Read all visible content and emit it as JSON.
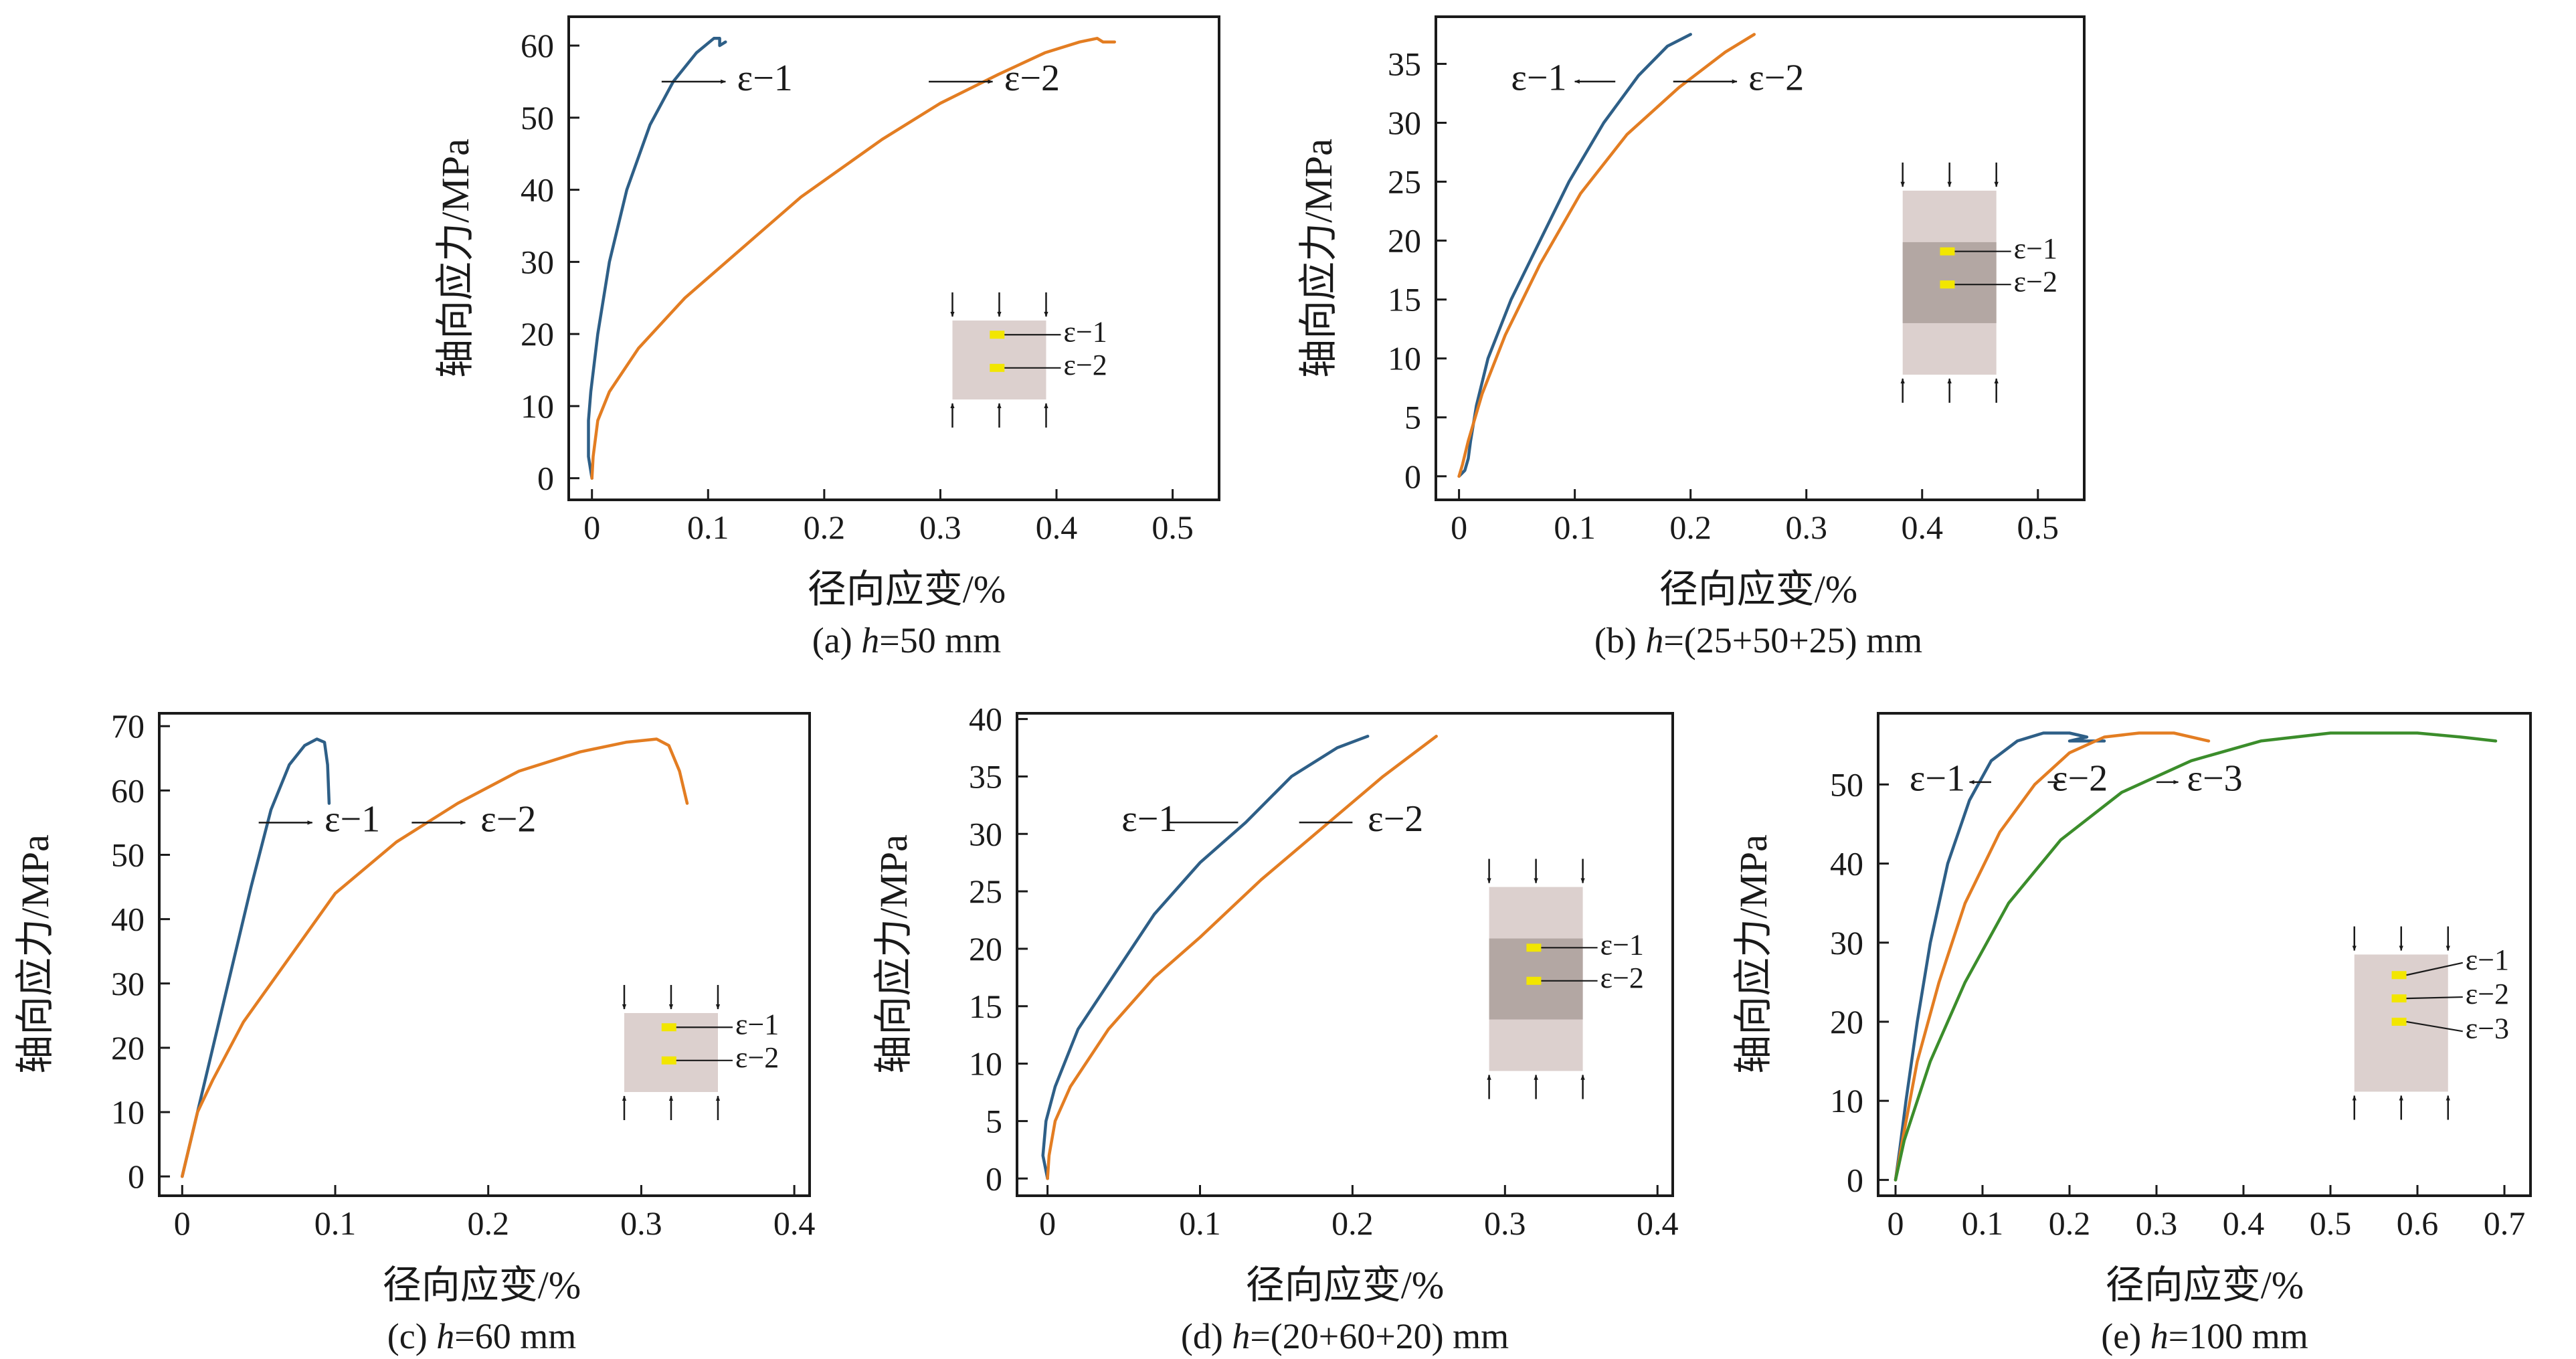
{
  "colors": {
    "series_1": "#2e5f87",
    "series_2": "#e37d22",
    "series_3": "#3b8d2b",
    "axis": "#1a1a1a",
    "specimen_light": "#dcd0ce",
    "specimen_dark": "#b3a7a3",
    "gauge": "#f2e600",
    "background": "#ffffff"
  },
  "chart_data": [
    {
      "id": "a",
      "type": "line",
      "caption": "(a) h=50 mm",
      "caption_parts": {
        "prefix": "(a) ",
        "var": "h",
        "suffix": "=50 mm"
      },
      "xlabel": "径向应变/%",
      "ylabel": "轴向应力/MPa",
      "xlim": [
        -0.02,
        0.54
      ],
      "ylim": [
        -3,
        64
      ],
      "xticks": [
        0,
        0.1,
        0.2,
        0.3,
        0.4,
        0.5
      ],
      "xtick_labels": [
        "0",
        "0.1",
        "0.2",
        "0.3",
        "0.4",
        "0.5"
      ],
      "yticks": [
        0,
        10,
        20,
        30,
        40,
        50,
        60
      ],
      "ytick_labels": [
        "0",
        "10",
        "20",
        "30",
        "40",
        "50",
        "60"
      ],
      "series": [
        {
          "name": "ε−1",
          "color_key": "series_1",
          "points": [
            [
              0,
              0
            ],
            [
              -0.003,
              3
            ],
            [
              -0.003,
              8
            ],
            [
              -0.001,
              12
            ],
            [
              0.005,
              20
            ],
            [
              0.015,
              30
            ],
            [
              0.03,
              40
            ],
            [
              0.05,
              49
            ],
            [
              0.07,
              55
            ],
            [
              0.09,
              59
            ],
            [
              0.105,
              61
            ],
            [
              0.11,
              61
            ],
            [
              0.11,
              60
            ],
            [
              0.115,
              60.5
            ]
          ]
        },
        {
          "name": "ε−2",
          "color_key": "series_2",
          "points": [
            [
              0,
              0
            ],
            [
              0.001,
              3
            ],
            [
              0.005,
              8
            ],
            [
              0.015,
              12
            ],
            [
              0.04,
              18
            ],
            [
              0.08,
              25
            ],
            [
              0.13,
              32
            ],
            [
              0.18,
              39
            ],
            [
              0.25,
              47
            ],
            [
              0.3,
              52
            ],
            [
              0.35,
              56
            ],
            [
              0.39,
              59
            ],
            [
              0.42,
              60.5
            ],
            [
              0.435,
              61
            ],
            [
              0.44,
              60.5
            ],
            [
              0.45,
              60.5
            ]
          ]
        }
      ],
      "annotations": [
        {
          "text": "ε−1",
          "from": [
            0.06,
            55
          ],
          "to": [
            0.115,
            55
          ],
          "text_at": [
            0.125,
            55
          ],
          "anchor": "start"
        },
        {
          "text": "ε−2",
          "from": [
            0.29,
            55
          ],
          "to": [
            0.345,
            55
          ],
          "text_at": [
            0.355,
            55
          ],
          "anchor": "start"
        }
      ],
      "inset": {
        "variant": "plain",
        "gauges": [
          "ε−1",
          "ε−2"
        ]
      }
    },
    {
      "id": "b",
      "type": "line",
      "caption": "(b) h=(25+50+25) mm",
      "caption_parts": {
        "prefix": "(b) ",
        "var": "h",
        "suffix": "=(25+50+25) mm"
      },
      "xlabel": "径向应变/%",
      "ylabel": "轴向应力/MPa",
      "xlim": [
        -0.02,
        0.54
      ],
      "ylim": [
        -2,
        39
      ],
      "xticks": [
        0,
        0.1,
        0.2,
        0.3,
        0.4,
        0.5
      ],
      "xtick_labels": [
        "0",
        "0.1",
        "0.2",
        "0.3",
        "0.4",
        "0.5"
      ],
      "yticks": [
        0,
        5,
        10,
        15,
        20,
        25,
        30,
        35
      ],
      "ytick_labels": [
        "0",
        "5",
        "10",
        "15",
        "20",
        "25",
        "30",
        "35"
      ],
      "series": [
        {
          "name": "ε−1",
          "color_key": "series_1",
          "points": [
            [
              0,
              0
            ],
            [
              0.005,
              0.5
            ],
            [
              0.008,
              1.5
            ],
            [
              0.01,
              3
            ],
            [
              0.015,
              6
            ],
            [
              0.025,
              10
            ],
            [
              0.045,
              15
            ],
            [
              0.07,
              20
            ],
            [
              0.095,
              25
            ],
            [
              0.125,
              30
            ],
            [
              0.155,
              34
            ],
            [
              0.18,
              36.5
            ],
            [
              0.2,
              37.5
            ]
          ]
        },
        {
          "name": "ε−2",
          "color_key": "series_2",
          "points": [
            [
              0,
              0
            ],
            [
              0.003,
              1
            ],
            [
              0.008,
              3
            ],
            [
              0.02,
              7
            ],
            [
              0.04,
              12
            ],
            [
              0.07,
              18
            ],
            [
              0.105,
              24
            ],
            [
              0.145,
              29
            ],
            [
              0.19,
              33
            ],
            [
              0.23,
              36
            ],
            [
              0.255,
              37.5
            ]
          ]
        }
      ],
      "annotations": [
        {
          "text": "ε−1",
          "from": [
            0.135,
            33.5
          ],
          "to": [
            0.1,
            33.5
          ],
          "text_at": [
            0.093,
            33.5
          ],
          "anchor": "end"
        },
        {
          "text": "ε−2",
          "from": [
            0.185,
            33.5
          ],
          "to": [
            0.24,
            33.5
          ],
          "text_at": [
            0.25,
            33.5
          ],
          "anchor": "start"
        }
      ],
      "inset": {
        "variant": "layered",
        "gauges": [
          "ε−1",
          "ε−2"
        ]
      }
    },
    {
      "id": "c",
      "type": "line",
      "caption": "(c) h=60 mm",
      "caption_parts": {
        "prefix": "(c) ",
        "var": "h",
        "suffix": "=60 mm"
      },
      "xlabel": "径向应变/%",
      "ylabel": "轴向应力/MPa",
      "xlim": [
        -0.015,
        0.41
      ],
      "ylim": [
        -3,
        72
      ],
      "xticks": [
        0,
        0.1,
        0.2,
        0.3,
        0.4
      ],
      "xtick_labels": [
        "0",
        "0.1",
        "0.2",
        "0.3",
        "0.4"
      ],
      "yticks": [
        0,
        10,
        20,
        30,
        40,
        50,
        60,
        70
      ],
      "ytick_labels": [
        "0",
        "10",
        "20",
        "30",
        "40",
        "50",
        "60",
        "70"
      ],
      "series": [
        {
          "name": "ε−1",
          "color_key": "series_1",
          "points": [
            [
              0,
              0
            ],
            [
              0.005,
              5
            ],
            [
              0.01,
              10
            ],
            [
              0.018,
              18
            ],
            [
              0.03,
              30
            ],
            [
              0.045,
              45
            ],
            [
              0.058,
              57
            ],
            [
              0.07,
              64
            ],
            [
              0.08,
              67
            ],
            [
              0.088,
              68
            ],
            [
              0.093,
              67.5
            ],
            [
              0.095,
              64
            ],
            [
              0.096,
              58
            ]
          ]
        },
        {
          "name": "ε−2",
          "color_key": "series_2",
          "points": [
            [
              0,
              0
            ],
            [
              0.01,
              10
            ],
            [
              0.02,
              15
            ],
            [
              0.04,
              24
            ],
            [
              0.07,
              34
            ],
            [
              0.1,
              44
            ],
            [
              0.14,
              52
            ],
            [
              0.18,
              58
            ],
            [
              0.22,
              63
            ],
            [
              0.26,
              66
            ],
            [
              0.29,
              67.5
            ],
            [
              0.31,
              68
            ],
            [
              0.318,
              67
            ],
            [
              0.325,
              63
            ],
            [
              0.33,
              58
            ]
          ]
        }
      ],
      "annotations": [
        {
          "text": "ε−1",
          "from": [
            0.05,
            55
          ],
          "to": [
            0.085,
            55
          ],
          "text_at": [
            0.093,
            55
          ],
          "anchor": "start"
        },
        {
          "text": "ε−2",
          "from": [
            0.15,
            55
          ],
          "to": [
            0.185,
            55
          ],
          "text_at": [
            0.195,
            55
          ],
          "anchor": "start"
        }
      ],
      "inset": {
        "variant": "plain",
        "gauges": [
          "ε−1",
          "ε−2"
        ]
      }
    },
    {
      "id": "d",
      "type": "line",
      "caption": "(d) h=(20+60+20) mm",
      "caption_parts": {
        "prefix": "(d) ",
        "var": "h",
        "suffix": "=(20+60+20) mm"
      },
      "xlabel": "径向应变/%",
      "ylabel": "轴向应力/MPa",
      "xlim": [
        -0.02,
        0.41
      ],
      "ylim": [
        -1.5,
        40.5
      ],
      "xticks": [
        0,
        0.1,
        0.2,
        0.3,
        0.4
      ],
      "xtick_labels": [
        "0",
        "0.1",
        "0.2",
        "0.3",
        "0.4"
      ],
      "yticks": [
        0,
        5,
        10,
        15,
        20,
        25,
        30,
        35,
        40
      ],
      "ytick_labels": [
        "0",
        "5",
        "10",
        "15",
        "20",
        "25",
        "30",
        "35",
        "40"
      ],
      "series": [
        {
          "name": "ε−1",
          "color_key": "series_1",
          "points": [
            [
              0,
              0
            ],
            [
              -0.003,
              2
            ],
            [
              -0.001,
              5
            ],
            [
              0.005,
              8
            ],
            [
              0.02,
              13
            ],
            [
              0.045,
              18
            ],
            [
              0.07,
              23
            ],
            [
              0.1,
              27.5
            ],
            [
              0.13,
              31
            ],
            [
              0.16,
              35
            ],
            [
              0.19,
              37.5
            ],
            [
              0.21,
              38.5
            ]
          ]
        },
        {
          "name": "ε−2",
          "color_key": "series_2",
          "points": [
            [
              0,
              0
            ],
            [
              0.001,
              2
            ],
            [
              0.005,
              5
            ],
            [
              0.015,
              8
            ],
            [
              0.04,
              13
            ],
            [
              0.07,
              17.5
            ],
            [
              0.1,
              21
            ],
            [
              0.14,
              26
            ],
            [
              0.18,
              30.5
            ],
            [
              0.22,
              35
            ],
            [
              0.255,
              38.5
            ]
          ]
        }
      ],
      "annotations": [
        {
          "text": "ε−1",
          "from": [
            0.125,
            31
          ],
          "to": [
            0.08,
            31
          ],
          "text_at": [
            0.085,
            31
          ],
          "anchor": "end",
          "line_only": true
        },
        {
          "text": "ε−2",
          "from": [
            0.165,
            31
          ],
          "to": [
            0.2,
            31
          ],
          "text_at": [
            0.21,
            31
          ],
          "anchor": "start",
          "line_only": true
        }
      ],
      "inset": {
        "variant": "layered",
        "gauges": [
          "ε−1",
          "ε−2"
        ]
      }
    },
    {
      "id": "e",
      "type": "line",
      "caption": "(e) h=100 mm",
      "caption_parts": {
        "prefix": "(e) ",
        "var": "h",
        "suffix": "=100 mm"
      },
      "xlabel": "径向应变/%",
      "ylabel": "轴向应力/MPa",
      "xlim": [
        -0.02,
        0.73
      ],
      "ylim": [
        -2,
        59
      ],
      "xticks": [
        0,
        0.1,
        0.2,
        0.3,
        0.4,
        0.5,
        0.6,
        0.7
      ],
      "xtick_labels": [
        "0",
        "0.1",
        "0.2",
        "0.3",
        "0.4",
        "0.5",
        "0.6",
        "0.7"
      ],
      "yticks": [
        0,
        10,
        20,
        30,
        40,
        50
      ],
      "ytick_labels": [
        "0",
        "10",
        "20",
        "30",
        "40",
        "50"
      ],
      "series": [
        {
          "name": "ε−1",
          "color_key": "series_1",
          "points": [
            [
              0,
              0
            ],
            [
              0.005,
              4
            ],
            [
              0.012,
              10
            ],
            [
              0.025,
              20
            ],
            [
              0.04,
              30
            ],
            [
              0.06,
              40
            ],
            [
              0.085,
              48
            ],
            [
              0.11,
              53
            ],
            [
              0.14,
              55.5
            ],
            [
              0.17,
              56.5
            ],
            [
              0.2,
              56.5
            ],
            [
              0.22,
              56
            ],
            [
              0.2,
              55.5
            ],
            [
              0.24,
              55.5
            ]
          ]
        },
        {
          "name": "ε−2",
          "color_key": "series_2",
          "points": [
            [
              0,
              0
            ],
            [
              0.008,
              5
            ],
            [
              0.025,
              15
            ],
            [
              0.05,
              25
            ],
            [
              0.08,
              35
            ],
            [
              0.12,
              44
            ],
            [
              0.16,
              50
            ],
            [
              0.2,
              54
            ],
            [
              0.24,
              56
            ],
            [
              0.28,
              56.5
            ],
            [
              0.32,
              56.5
            ],
            [
              0.36,
              55.5
            ]
          ]
        },
        {
          "name": "ε−3",
          "color_key": "series_3",
          "points": [
            [
              0,
              0
            ],
            [
              0.01,
              5
            ],
            [
              0.04,
              15
            ],
            [
              0.08,
              25
            ],
            [
              0.13,
              35
            ],
            [
              0.19,
              43
            ],
            [
              0.26,
              49
            ],
            [
              0.34,
              53
            ],
            [
              0.42,
              55.5
            ],
            [
              0.5,
              56.5
            ],
            [
              0.6,
              56.5
            ],
            [
              0.65,
              56
            ],
            [
              0.69,
              55.5
            ]
          ]
        }
      ],
      "annotations": [
        {
          "text": "ε−1",
          "from": [
            0.11,
            50.3
          ],
          "to": [
            0.085,
            50.3
          ],
          "text_at": [
            0.08,
            50.3
          ],
          "anchor": "end"
        },
        {
          "text": "ε−2",
          "from": [
            0.195,
            50.3
          ],
          "to": [
            0.175,
            50.3
          ],
          "text_at": [
            0.18,
            50.3
          ],
          "anchor": "start",
          "bare": true
        },
        {
          "text": "ε−3",
          "from": [
            0.3,
            50.3
          ],
          "to": [
            0.325,
            50.3
          ],
          "text_at": [
            0.335,
            50.3
          ],
          "anchor": "start"
        }
      ],
      "inset": {
        "variant": "three",
        "gauges": [
          "ε−1",
          "ε−2",
          "ε−3"
        ]
      }
    }
  ]
}
